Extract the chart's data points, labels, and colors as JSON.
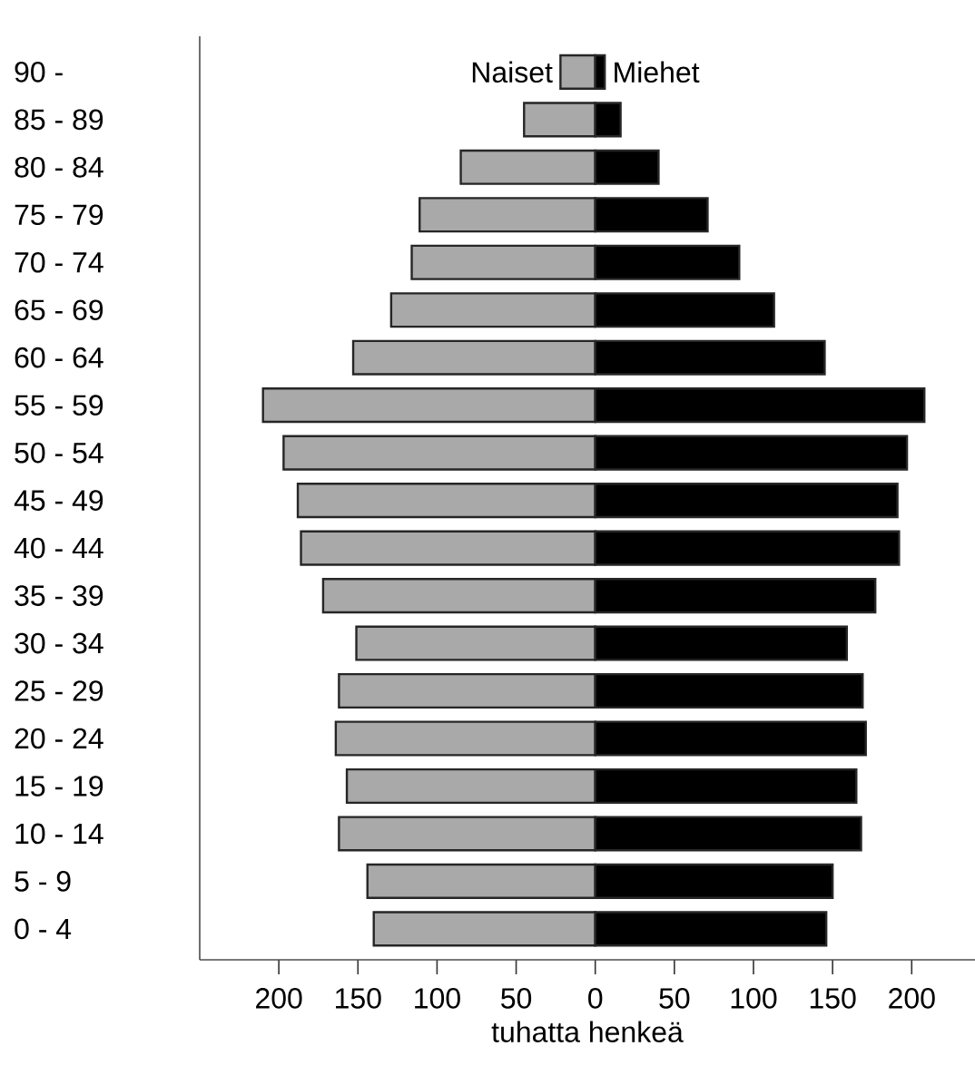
{
  "chart_data": {
    "type": "bar",
    "orientation": "horizontal",
    "stacked": true,
    "xlabel": "tuhatta henkeä",
    "categories": [
      "90 -",
      "85 - 89",
      "80 - 84",
      "75 - 79",
      "70 - 74",
      "65 - 69",
      "60 - 64",
      "55 - 59",
      "50 - 54",
      "45 - 49",
      "40 - 44",
      "35 - 39",
      "30 - 34",
      "25 - 29",
      "20 - 24",
      "15 - 19",
      "10 - 14",
      "5 -   9",
      "0 -   4"
    ],
    "series": [
      {
        "name": "Naiset",
        "color": "#a9a9a9",
        "values": [
          -22,
          -45,
          -85,
          -111,
          -116,
          -129,
          -153,
          -210,
          -197,
          -188,
          -186,
          -172,
          -151,
          -162,
          -164,
          -157,
          -162,
          -144,
          -140
        ]
      },
      {
        "name": "Miehet",
        "color": "#000000",
        "values": [
          6,
          16,
          40,
          71,
          91,
          113,
          145,
          208,
          197,
          191,
          192,
          177,
          159,
          169,
          171,
          165,
          168,
          150,
          146
        ]
      }
    ],
    "xlim": [
      -250,
      240
    ],
    "xticks": [
      {
        "value": -200,
        "label": "200"
      },
      {
        "value": -150,
        "label": "150"
      },
      {
        "value": -100,
        "label": "100"
      },
      {
        "value": -50,
        "label": "50"
      },
      0,
      50,
      100,
      150,
      200
    ]
  }
}
